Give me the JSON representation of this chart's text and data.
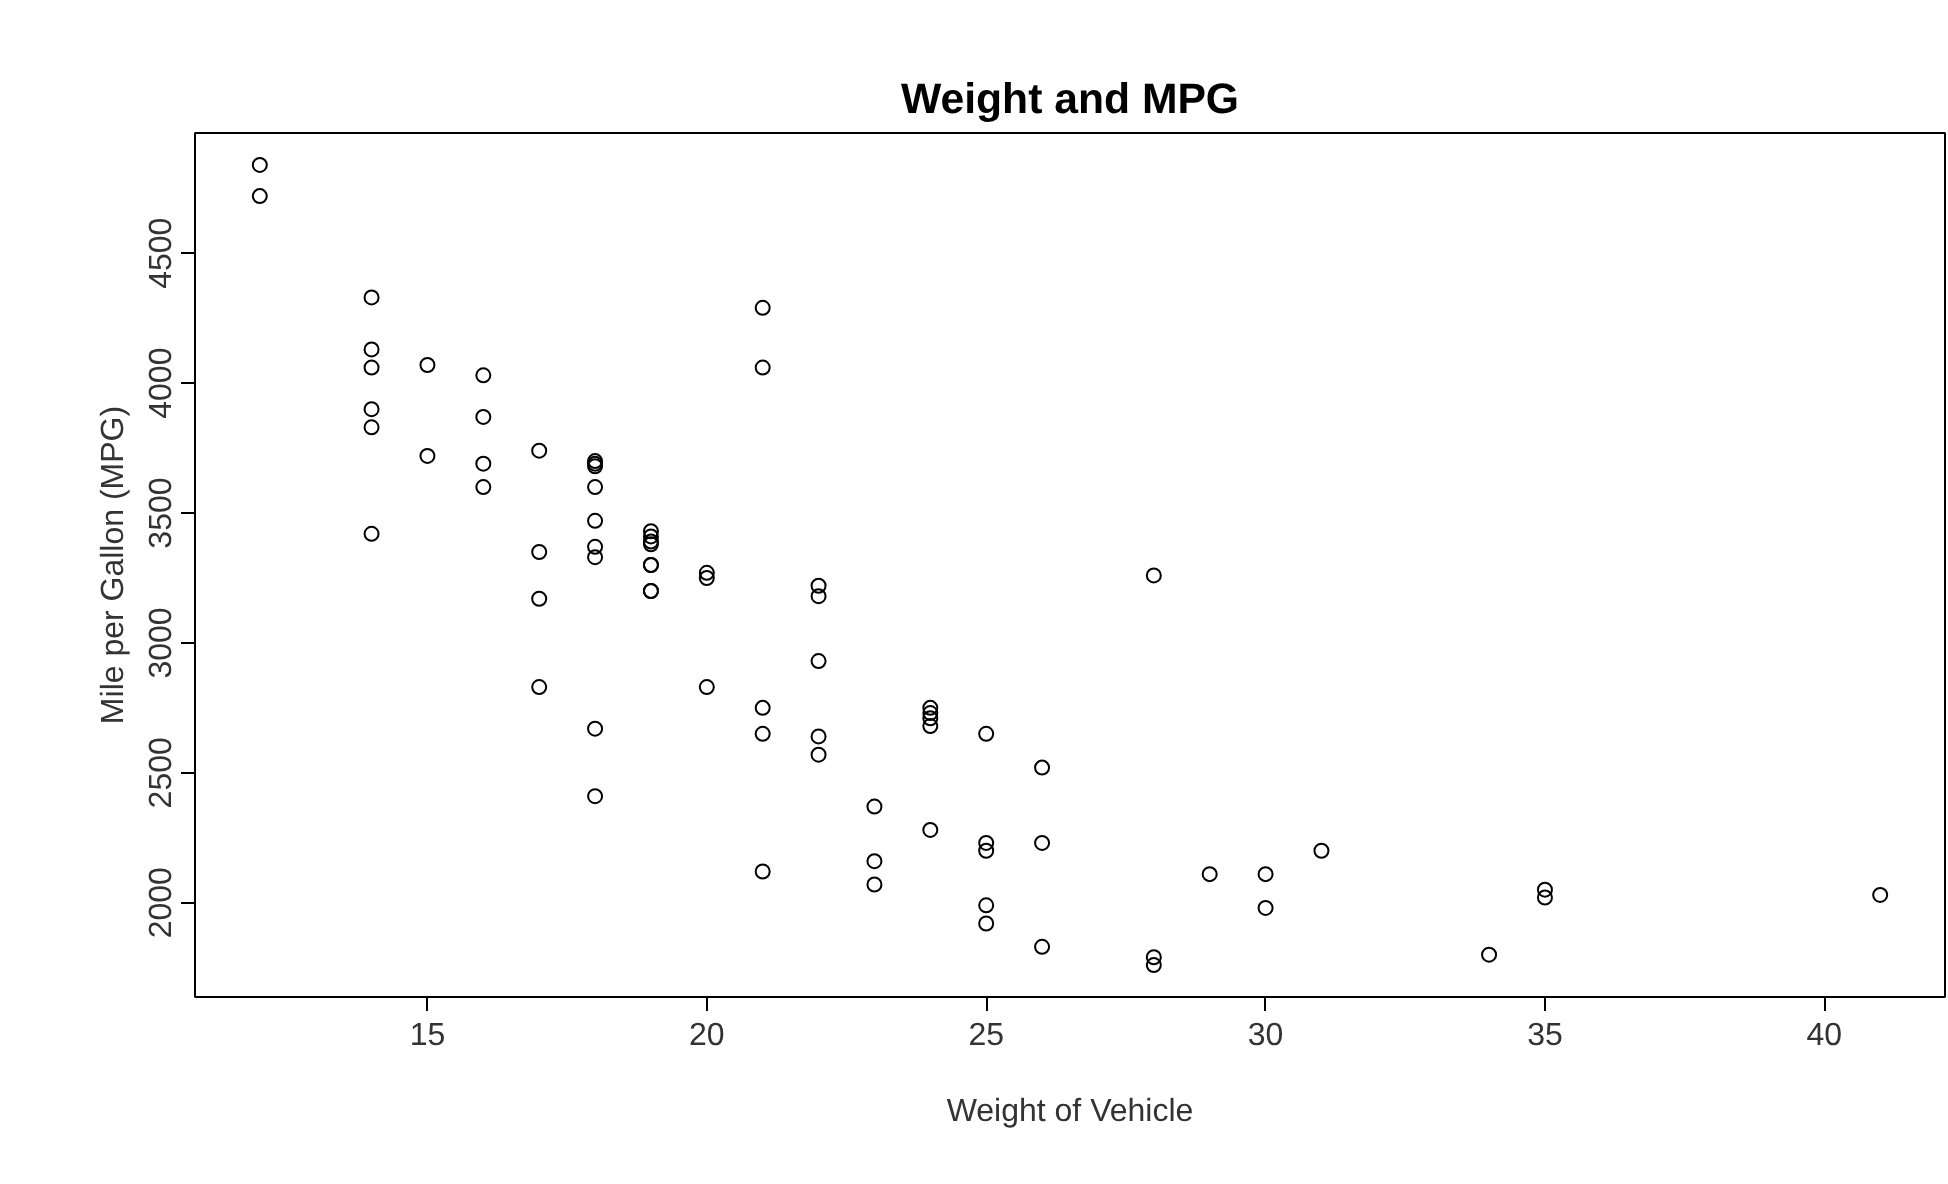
{
  "chart_data": {
    "type": "scatter",
    "title": "Weight and MPG",
    "xlabel": "Weight of Vehicle",
    "ylabel": "Mile per Gallon (MPG)",
    "x": [
      12,
      12,
      14,
      14,
      14,
      14,
      14,
      14,
      15,
      15,
      16,
      16,
      16,
      16,
      17,
      17,
      17,
      17,
      18,
      18,
      18,
      18,
      18,
      18,
      18,
      18,
      18,
      19,
      19,
      19,
      19,
      19,
      19,
      19,
      19,
      20,
      20,
      20,
      21,
      21,
      21,
      21,
      21,
      22,
      22,
      22,
      22,
      22,
      23,
      23,
      23,
      24,
      24,
      24,
      24,
      24,
      25,
      25,
      25,
      25,
      25,
      26,
      26,
      26,
      28,
      28,
      28,
      29,
      30,
      30,
      31,
      34,
      35,
      35,
      41
    ],
    "values": [
      4840,
      4720,
      4330,
      4130,
      4060,
      3900,
      3830,
      3420,
      4070,
      3720,
      4030,
      3870,
      3690,
      3600,
      3740,
      3350,
      3170,
      2830,
      3700,
      3690,
      3680,
      3600,
      3470,
      3370,
      3330,
      2670,
      2410,
      3430,
      3410,
      3390,
      3380,
      3300,
      3300,
      3200,
      3200,
      3270,
      3250,
      2830,
      4290,
      4060,
      2750,
      2650,
      2120,
      3220,
      3180,
      2930,
      2640,
      2570,
      2370,
      2160,
      2070,
      2750,
      2730,
      2710,
      2680,
      2280,
      2650,
      2230,
      2200,
      1990,
      1920,
      2520,
      2230,
      1830,
      3260,
      1790,
      1760,
      2110,
      2110,
      1980,
      2200,
      1800,
      2050,
      2020,
      2030
    ],
    "color": "#000000",
    "marker": "circle",
    "grid": false,
    "xlim": [
      10.84,
      42.16
    ],
    "ylim": [
      1637,
      4963
    ],
    "xticks": [
      15,
      20,
      25,
      30,
      35,
      40
    ],
    "yticks": [
      2000,
      2500,
      3000,
      3500,
      4000,
      4500
    ]
  }
}
